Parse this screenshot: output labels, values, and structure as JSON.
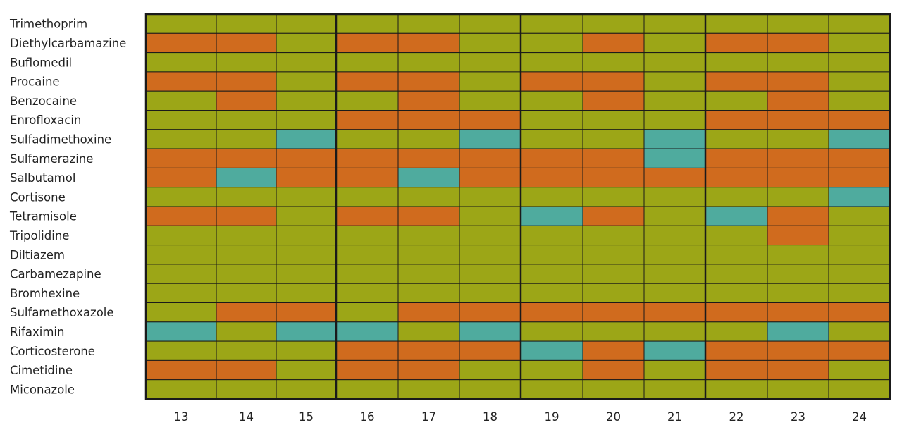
{
  "colors": {
    "A": "#9ca617",
    "B": "#d06b1e",
    "C": "#4fab9e",
    "grid": "#1a1a1a"
  },
  "chart_data": {
    "type": "heatmap",
    "title": "",
    "xlabel": "",
    "ylabel": "",
    "columns": [
      "13",
      "14",
      "15",
      "16",
      "17",
      "18",
      "19",
      "20",
      "21",
      "22",
      "23",
      "24"
    ],
    "rows": [
      {
        "label": "Trimethoprim",
        "cells": [
          "A",
          "A",
          "A",
          "A",
          "A",
          "A",
          "A",
          "A",
          "A",
          "A",
          "A",
          "A"
        ]
      },
      {
        "label": "Diethylcarbamazine",
        "cells": [
          "B",
          "B",
          "A",
          "B",
          "B",
          "A",
          "A",
          "B",
          "A",
          "B",
          "B",
          "A"
        ]
      },
      {
        "label": "Buflomedil",
        "cells": [
          "A",
          "A",
          "A",
          "A",
          "A",
          "A",
          "A",
          "A",
          "A",
          "A",
          "A",
          "A"
        ]
      },
      {
        "label": "Procaine",
        "cells": [
          "B",
          "B",
          "A",
          "B",
          "B",
          "A",
          "B",
          "B",
          "A",
          "B",
          "B",
          "A"
        ]
      },
      {
        "label": "Benzocaine",
        "cells": [
          "A",
          "B",
          "A",
          "A",
          "B",
          "A",
          "A",
          "B",
          "A",
          "A",
          "B",
          "A"
        ]
      },
      {
        "label": "Enrofloxacin",
        "cells": [
          "A",
          "A",
          "A",
          "B",
          "B",
          "B",
          "A",
          "A",
          "A",
          "B",
          "B",
          "B"
        ]
      },
      {
        "label": "Sulfadimethoxine",
        "cells": [
          "A",
          "A",
          "C",
          "A",
          "A",
          "C",
          "A",
          "A",
          "C",
          "A",
          "A",
          "C"
        ]
      },
      {
        "label": "Sulfamerazine",
        "cells": [
          "B",
          "B",
          "B",
          "B",
          "B",
          "B",
          "B",
          "B",
          "C",
          "B",
          "B",
          "B"
        ]
      },
      {
        "label": "Salbutamol",
        "cells": [
          "B",
          "C",
          "B",
          "B",
          "C",
          "B",
          "B",
          "B",
          "B",
          "B",
          "B",
          "B"
        ]
      },
      {
        "label": "Cortisone",
        "cells": [
          "A",
          "A",
          "A",
          "A",
          "A",
          "A",
          "A",
          "A",
          "A",
          "A",
          "A",
          "C"
        ]
      },
      {
        "label": "Tetramisole",
        "cells": [
          "B",
          "B",
          "A",
          "B",
          "B",
          "A",
          "C",
          "B",
          "A",
          "C",
          "B",
          "A"
        ]
      },
      {
        "label": "Tripolidine",
        "cells": [
          "A",
          "A",
          "A",
          "A",
          "A",
          "A",
          "A",
          "A",
          "A",
          "A",
          "B",
          "A"
        ]
      },
      {
        "label": "Diltiazem",
        "cells": [
          "A",
          "A",
          "A",
          "A",
          "A",
          "A",
          "A",
          "A",
          "A",
          "A",
          "A",
          "A"
        ]
      },
      {
        "label": "Carbamezapine",
        "cells": [
          "A",
          "A",
          "A",
          "A",
          "A",
          "A",
          "A",
          "A",
          "A",
          "A",
          "A",
          "A"
        ]
      },
      {
        "label": "Bromhexine",
        "cells": [
          "A",
          "A",
          "A",
          "A",
          "A",
          "A",
          "A",
          "A",
          "A",
          "A",
          "A",
          "A"
        ]
      },
      {
        "label": "Sulfamethoxazole",
        "cells": [
          "A",
          "B",
          "B",
          "A",
          "B",
          "B",
          "B",
          "B",
          "B",
          "B",
          "B",
          "B"
        ]
      },
      {
        "label": "Rifaximin",
        "cells": [
          "C",
          "A",
          "C",
          "C",
          "A",
          "C",
          "A",
          "A",
          "A",
          "A",
          "C",
          "A"
        ]
      },
      {
        "label": "Corticosterone",
        "cells": [
          "A",
          "A",
          "A",
          "B",
          "B",
          "B",
          "C",
          "B",
          "C",
          "B",
          "B",
          "B"
        ]
      },
      {
        "label": "Cimetidine",
        "cells": [
          "B",
          "B",
          "A",
          "B",
          "B",
          "A",
          "A",
          "B",
          "A",
          "B",
          "B",
          "A"
        ]
      },
      {
        "label": "Miconazole",
        "cells": [
          "A",
          "A",
          "A",
          "A",
          "A",
          "A",
          "A",
          "A",
          "A",
          "A",
          "A",
          "A"
        ]
      }
    ]
  }
}
